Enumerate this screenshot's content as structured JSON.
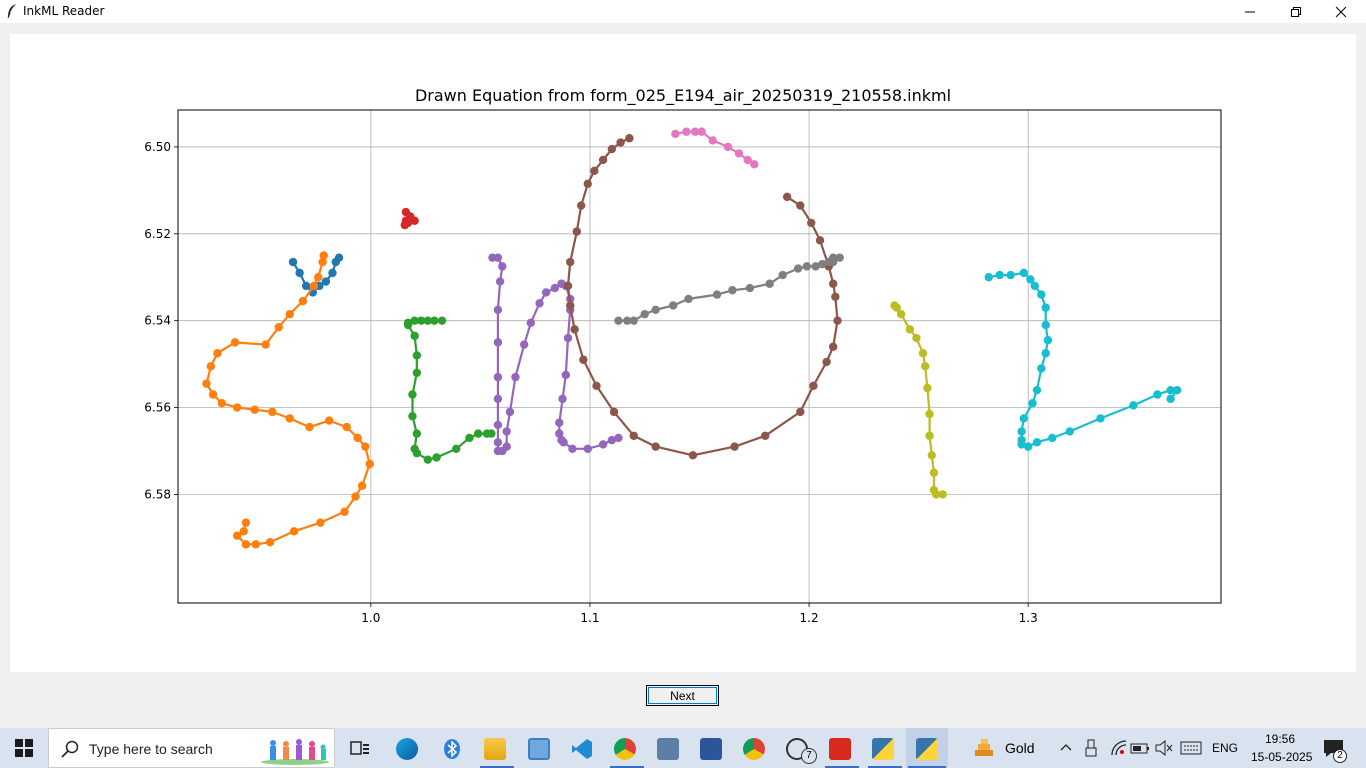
{
  "window": {
    "title": "InkML Reader",
    "icon": "feather-icon",
    "controls": [
      "minimize-icon",
      "restore-icon",
      "close-icon"
    ]
  },
  "chart_data": {
    "type": "scatter",
    "title": "Drawn Equation from form_025_E194_air_20250319_210558.inkml",
    "xlabel": "",
    "ylabel": "",
    "xlim": [
      0.912,
      1.388
    ],
    "ylim": [
      6.605,
      6.4915
    ],
    "y_inverted": true,
    "grid": true,
    "xticks": [
      "1.0",
      "1.1",
      "1.2",
      "1.3"
    ],
    "xtick_values": [
      1.0,
      1.1,
      1.2,
      1.3
    ],
    "yticks": [
      "6.50",
      "6.52",
      "6.54",
      "6.56",
      "6.58"
    ],
    "ytick_values": [
      6.5,
      6.52,
      6.54,
      6.56,
      6.58
    ],
    "series": [
      {
        "color": "#1f77b4",
        "points": [
          [
            0.9645,
            6.5265
          ],
          [
            0.9675,
            6.529
          ],
          [
            0.9705,
            6.532
          ],
          [
            0.9735,
            6.5335
          ],
          [
            0.9765,
            6.532
          ],
          [
            0.9795,
            6.531
          ],
          [
            0.9825,
            6.529
          ],
          [
            0.984,
            6.5265
          ],
          [
            0.9855,
            6.5255
          ]
        ]
      },
      {
        "color": "#ff7f0e",
        "points": [
          [
            0.9785,
            6.525
          ],
          [
            0.978,
            6.5265
          ],
          [
            0.976,
            6.53
          ],
          [
            0.974,
            6.532
          ],
          [
            0.969,
            6.5355
          ],
          [
            0.963,
            6.5385
          ],
          [
            0.958,
            6.5415
          ],
          [
            0.952,
            6.5455
          ],
          [
            0.938,
            6.545
          ],
          [
            0.93,
            6.5475
          ],
          [
            0.927,
            6.5505
          ],
          [
            0.925,
            6.5545
          ],
          [
            0.928,
            6.557
          ],
          [
            0.932,
            6.559
          ],
          [
            0.939,
            6.56
          ],
          [
            0.947,
            6.5605
          ],
          [
            0.955,
            6.561
          ],
          [
            0.963,
            6.5625
          ],
          [
            0.972,
            6.5645
          ],
          [
            0.981,
            6.563
          ],
          [
            0.989,
            6.5645
          ],
          [
            0.994,
            6.567
          ],
          [
            0.9975,
            6.569
          ],
          [
            0.9995,
            6.573
          ],
          [
            0.996,
            6.578
          ],
          [
            0.993,
            6.5805
          ],
          [
            0.988,
            6.584
          ],
          [
            0.977,
            6.5865
          ],
          [
            0.965,
            6.5885
          ],
          [
            0.954,
            6.591
          ],
          [
            0.9475,
            6.5915
          ],
          [
            0.943,
            6.5915
          ],
          [
            0.939,
            6.5895
          ],
          [
            0.942,
            6.5885
          ],
          [
            0.943,
            6.5865
          ]
        ]
      },
      {
        "color": "#d62728",
        "points": [
          [
            1.016,
            6.515
          ],
          [
            1.018,
            6.516
          ],
          [
            1.02,
            6.517
          ],
          [
            1.017,
            6.5175
          ],
          [
            1.016,
            6.517
          ],
          [
            1.016,
            6.5175
          ],
          [
            1.0155,
            6.518
          ]
        ]
      },
      {
        "color": "#2ca02c",
        "points": [
          [
            1.0325,
            6.54
          ],
          [
            1.029,
            6.54
          ],
          [
            1.026,
            6.54
          ],
          [
            1.023,
            6.54
          ],
          [
            1.02,
            6.54
          ],
          [
            1.017,
            6.5405
          ],
          [
            1.017,
            6.541
          ],
          [
            1.02,
            6.5435
          ],
          [
            1.021,
            6.548
          ],
          [
            1.021,
            6.552
          ],
          [
            1.019,
            6.557
          ],
          [
            1.019,
            6.562
          ],
          [
            1.021,
            6.566
          ],
          [
            1.02,
            6.5695
          ],
          [
            1.021,
            6.5705
          ],
          [
            1.026,
            6.572
          ],
          [
            1.03,
            6.5715
          ],
          [
            1.039,
            6.5695
          ],
          [
            1.045,
            6.567
          ],
          [
            1.049,
            6.566
          ],
          [
            1.053,
            6.566
          ],
          [
            1.055,
            6.566
          ]
        ]
      },
      {
        "color": "#9467bd",
        "points": [
          [
            1.0555,
            6.5255
          ],
          [
            1.058,
            6.5255
          ],
          [
            1.06,
            6.5275
          ],
          [
            1.059,
            6.531
          ],
          [
            1.058,
            6.5375
          ],
          [
            1.058,
            6.545
          ],
          [
            1.058,
            6.553
          ],
          [
            1.058,
            6.558
          ],
          [
            1.058,
            6.564
          ],
          [
            1.058,
            6.568
          ],
          [
            1.058,
            6.57
          ],
          [
            1.06,
            6.57
          ],
          [
            1.062,
            6.569
          ],
          [
            1.062,
            6.5655
          ],
          [
            1.0635,
            6.561
          ],
          [
            1.066,
            6.553
          ],
          [
            1.07,
            6.5455
          ],
          [
            1.073,
            6.5405
          ],
          [
            1.077,
            6.536
          ],
          [
            1.08,
            6.5335
          ],
          [
            1.084,
            6.5325
          ],
          [
            1.087,
            6.5315
          ],
          [
            1.089,
            6.532
          ],
          [
            1.091,
            6.535
          ],
          [
            1.091,
            6.5375
          ],
          [
            1.09,
            6.544
          ],
          [
            1.089,
            6.5525
          ],
          [
            1.0875,
            6.558
          ],
          [
            1.086,
            6.5635
          ],
          [
            1.086,
            6.566
          ],
          [
            1.087,
            6.5675
          ],
          [
            1.088,
            6.568
          ],
          [
            1.092,
            6.5695
          ],
          [
            1.099,
            6.5695
          ],
          [
            1.106,
            6.5685
          ],
          [
            1.11,
            6.5675
          ],
          [
            1.113,
            6.567
          ]
        ]
      },
      {
        "color": "#8c564b",
        "points": [
          [
            1.19,
            6.5115
          ],
          [
            1.196,
            6.5135
          ],
          [
            1.201,
            6.5175
          ],
          [
            1.205,
            6.5215
          ],
          [
            1.209,
            6.5275
          ],
          [
            1.211,
            6.5315
          ],
          [
            1.212,
            6.5345
          ],
          [
            1.213,
            6.54
          ],
          [
            1.211,
            6.546
          ],
          [
            1.208,
            6.5495
          ],
          [
            1.202,
            6.555
          ],
          [
            1.196,
            6.561
          ],
          [
            1.18,
            6.5665
          ],
          [
            1.166,
            6.569
          ],
          [
            1.147,
            6.571
          ],
          [
            1.13,
            6.569
          ],
          [
            1.12,
            6.5665
          ],
          [
            1.111,
            6.561
          ],
          [
            1.103,
            6.555
          ],
          [
            1.097,
            6.549
          ],
          [
            1.093,
            6.542
          ],
          [
            1.091,
            6.5365
          ],
          [
            1.09,
            6.532
          ],
          [
            1.091,
            6.5265
          ],
          [
            1.094,
            6.5195
          ],
          [
            1.096,
            6.5135
          ],
          [
            1.099,
            6.5085
          ],
          [
            1.102,
            6.5055
          ],
          [
            1.106,
            6.503
          ],
          [
            1.11,
            6.5005
          ],
          [
            1.114,
            6.499
          ],
          [
            1.118,
            6.498
          ]
        ]
      },
      {
        "color": "#e377c2",
        "points": [
          [
            1.139,
            6.497
          ],
          [
            1.144,
            6.4965
          ],
          [
            1.148,
            6.4965
          ],
          [
            1.151,
            6.4965
          ],
          [
            1.156,
            6.4985
          ],
          [
            1.163,
            6.5
          ],
          [
            1.168,
            6.5015
          ],
          [
            1.172,
            6.503
          ],
          [
            1.175,
            6.504
          ]
        ]
      },
      {
        "color": "#7f7f7f",
        "points": [
          [
            1.113,
            6.54
          ],
          [
            1.117,
            6.54
          ],
          [
            1.12,
            6.54
          ],
          [
            1.125,
            6.5385
          ],
          [
            1.13,
            6.5375
          ],
          [
            1.138,
            6.5365
          ],
          [
            1.145,
            6.535
          ],
          [
            1.158,
            6.534
          ],
          [
            1.165,
            6.533
          ],
          [
            1.173,
            6.5325
          ],
          [
            1.182,
            6.5315
          ],
          [
            1.188,
            6.5295
          ],
          [
            1.195,
            6.528
          ],
          [
            1.199,
            6.5275
          ],
          [
            1.203,
            6.5275
          ],
          [
            1.206,
            6.527
          ],
          [
            1.209,
            6.5265
          ],
          [
            1.211,
            6.5255
          ],
          [
            1.214,
            6.5255
          ],
          [
            1.211,
            6.5265
          ]
        ]
      },
      {
        "color": "#bcbd22",
        "points": [
          [
            1.239,
            6.5365
          ],
          [
            1.24,
            6.537
          ],
          [
            1.242,
            6.5385
          ],
          [
            1.246,
            6.542
          ],
          [
            1.249,
            6.544
          ],
          [
            1.252,
            6.5475
          ],
          [
            1.253,
            6.5505
          ],
          [
            1.254,
            6.5555
          ],
          [
            1.255,
            6.5615
          ],
          [
            1.255,
            6.5665
          ],
          [
            1.256,
            6.571
          ],
          [
            1.257,
            6.575
          ],
          [
            1.257,
            6.579
          ],
          [
            1.258,
            6.58
          ],
          [
            1.261,
            6.58
          ]
        ]
      },
      {
        "color": "#17becf",
        "points": [
          [
            1.282,
            6.53
          ],
          [
            1.287,
            6.5295
          ],
          [
            1.292,
            6.5295
          ],
          [
            1.298,
            6.529
          ],
          [
            1.301,
            6.5305
          ],
          [
            1.303,
            6.532
          ],
          [
            1.306,
            6.534
          ],
          [
            1.308,
            6.537
          ],
          [
            1.308,
            6.541
          ],
          [
            1.309,
            6.5445
          ],
          [
            1.308,
            6.5475
          ],
          [
            1.306,
            6.551
          ],
          [
            1.304,
            6.556
          ],
          [
            1.302,
            6.559
          ],
          [
            1.298,
            6.5625
          ],
          [
            1.297,
            6.5655
          ],
          [
            1.297,
            6.5675
          ],
          [
            1.297,
            6.5685
          ],
          [
            1.3,
            6.569
          ],
          [
            1.304,
            6.568
          ],
          [
            1.311,
            6.567
          ],
          [
            1.319,
            6.5655
          ],
          [
            1.333,
            6.5625
          ],
          [
            1.348,
            6.5595
          ],
          [
            1.359,
            6.557
          ],
          [
            1.365,
            6.556
          ],
          [
            1.368,
            6.556
          ],
          [
            1.365,
            6.558
          ]
        ]
      }
    ]
  },
  "buttons": {
    "next_label": "Next"
  },
  "taskbar": {
    "search_placeholder": "Type here to search",
    "weather_label": "Gold",
    "language": "ENG",
    "time": "19:56",
    "date": "15-05-2025",
    "whatsapp_badge": "7",
    "notification_count": "2",
    "icons": [
      "windows-start-icon",
      "search-icon",
      "task-view-icon",
      "edge-icon",
      "bluetooth-icon",
      "file-explorer-icon",
      "control-panel-icon",
      "vscode-icon",
      "chrome-profile-icon",
      "calculator-icon",
      "word-icon",
      "chrome-icon",
      "whatsapp-icon",
      "acrobat-icon",
      "python-idle-icon",
      "python-icon"
    ]
  }
}
